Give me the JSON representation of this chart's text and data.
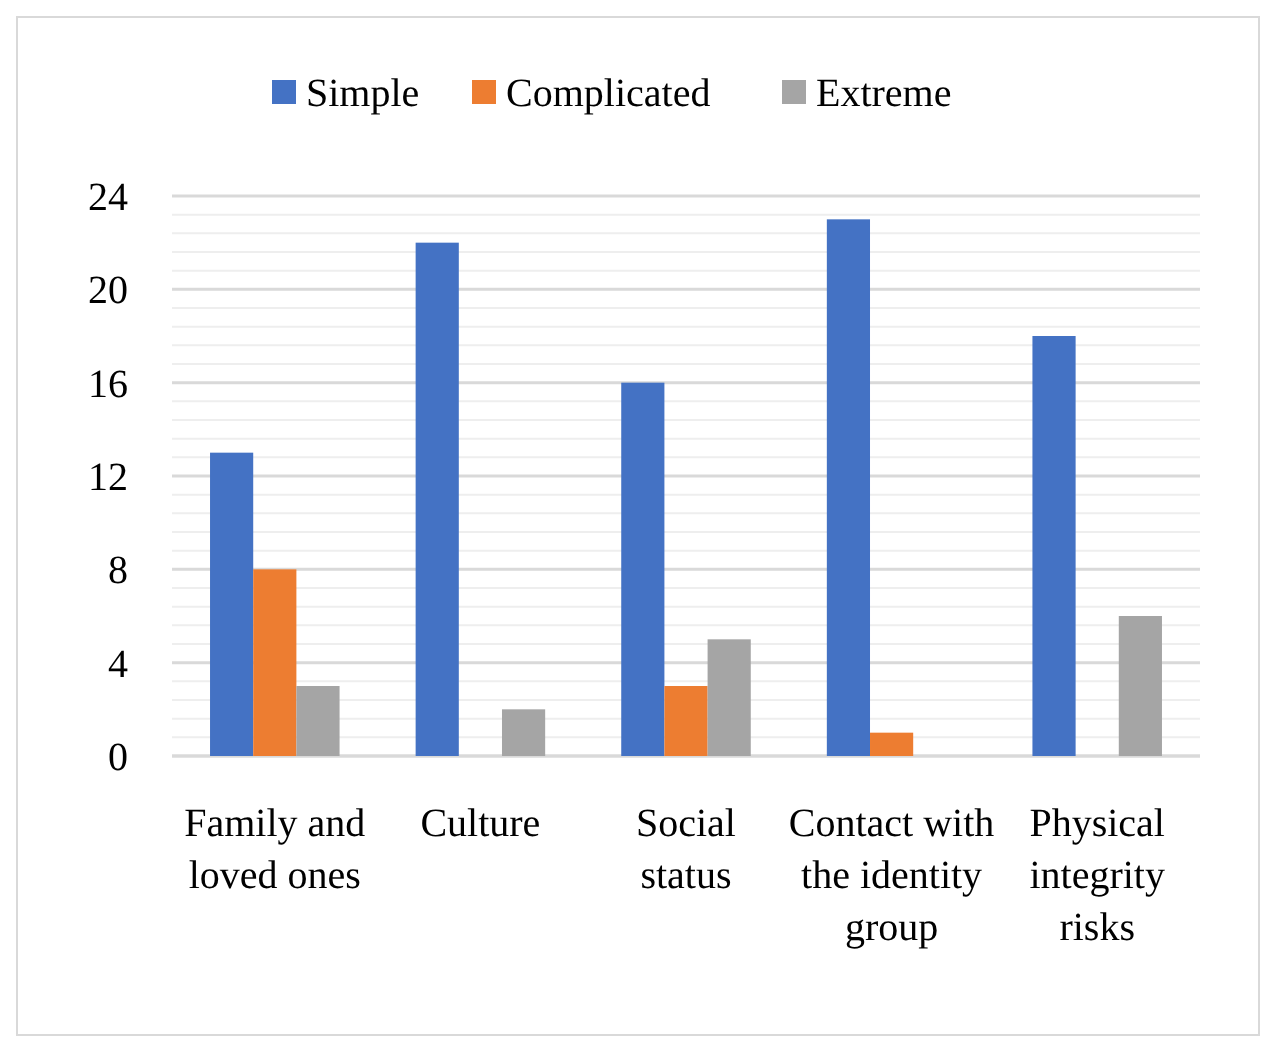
{
  "chart_data": {
    "type": "bar",
    "categories": [
      "Family and loved ones",
      "Culture",
      "Social status",
      "Contact with the identity group",
      "Physical integrity risks"
    ],
    "series": [
      {
        "name": "Simple",
        "color": "#4472c4",
        "values": [
          13,
          22,
          16,
          23,
          18
        ]
      },
      {
        "name": "Complicated",
        "color": "#ed7d31",
        "values": [
          8,
          0,
          3,
          1,
          0
        ]
      },
      {
        "name": "Extreme",
        "color": "#a5a5a5",
        "values": [
          3,
          2,
          5,
          0,
          6
        ]
      }
    ],
    "ylim": [
      0,
      24
    ],
    "yticks": [
      0,
      {
        "value": 0.8,
        "label": null
      },
      {
        "value": 1.6,
        "label": null
      },
      {
        "value": 2.4,
        "label": null
      },
      {
        "value": 3.2,
        "label": null
      },
      4,
      {
        "value": 4.8,
        "label": null
      },
      {
        "value": 5.6,
        "label": null
      },
      {
        "value": 6.4,
        "label": null
      },
      {
        "value": 7.2,
        "label": null
      },
      8,
      {
        "value": 8.8,
        "label": null
      },
      {
        "value": 9.6,
        "label": null
      },
      {
        "value": 10.4,
        "label": null
      },
      {
        "value": 11.2,
        "label": null
      },
      12,
      {
        "value": 12.8,
        "label": null
      },
      {
        "value": 13.6,
        "label": null
      },
      {
        "value": 14.4,
        "label": null
      },
      {
        "value": 15.2,
        "label": null
      },
      16,
      {
        "value": 16.8,
        "label": null
      },
      {
        "value": 17.6,
        "label": null
      },
      {
        "value": 18.4,
        "label": null
      },
      {
        "value": 19.2,
        "label": null
      },
      20,
      {
        "value": 20.8,
        "label": null
      },
      {
        "value": 21.6,
        "label": null
      },
      {
        "value": 22.4,
        "label": null
      },
      {
        "value": 23.2,
        "label": null
      },
      24
    ],
    "grid": true,
    "legend": "top"
  }
}
